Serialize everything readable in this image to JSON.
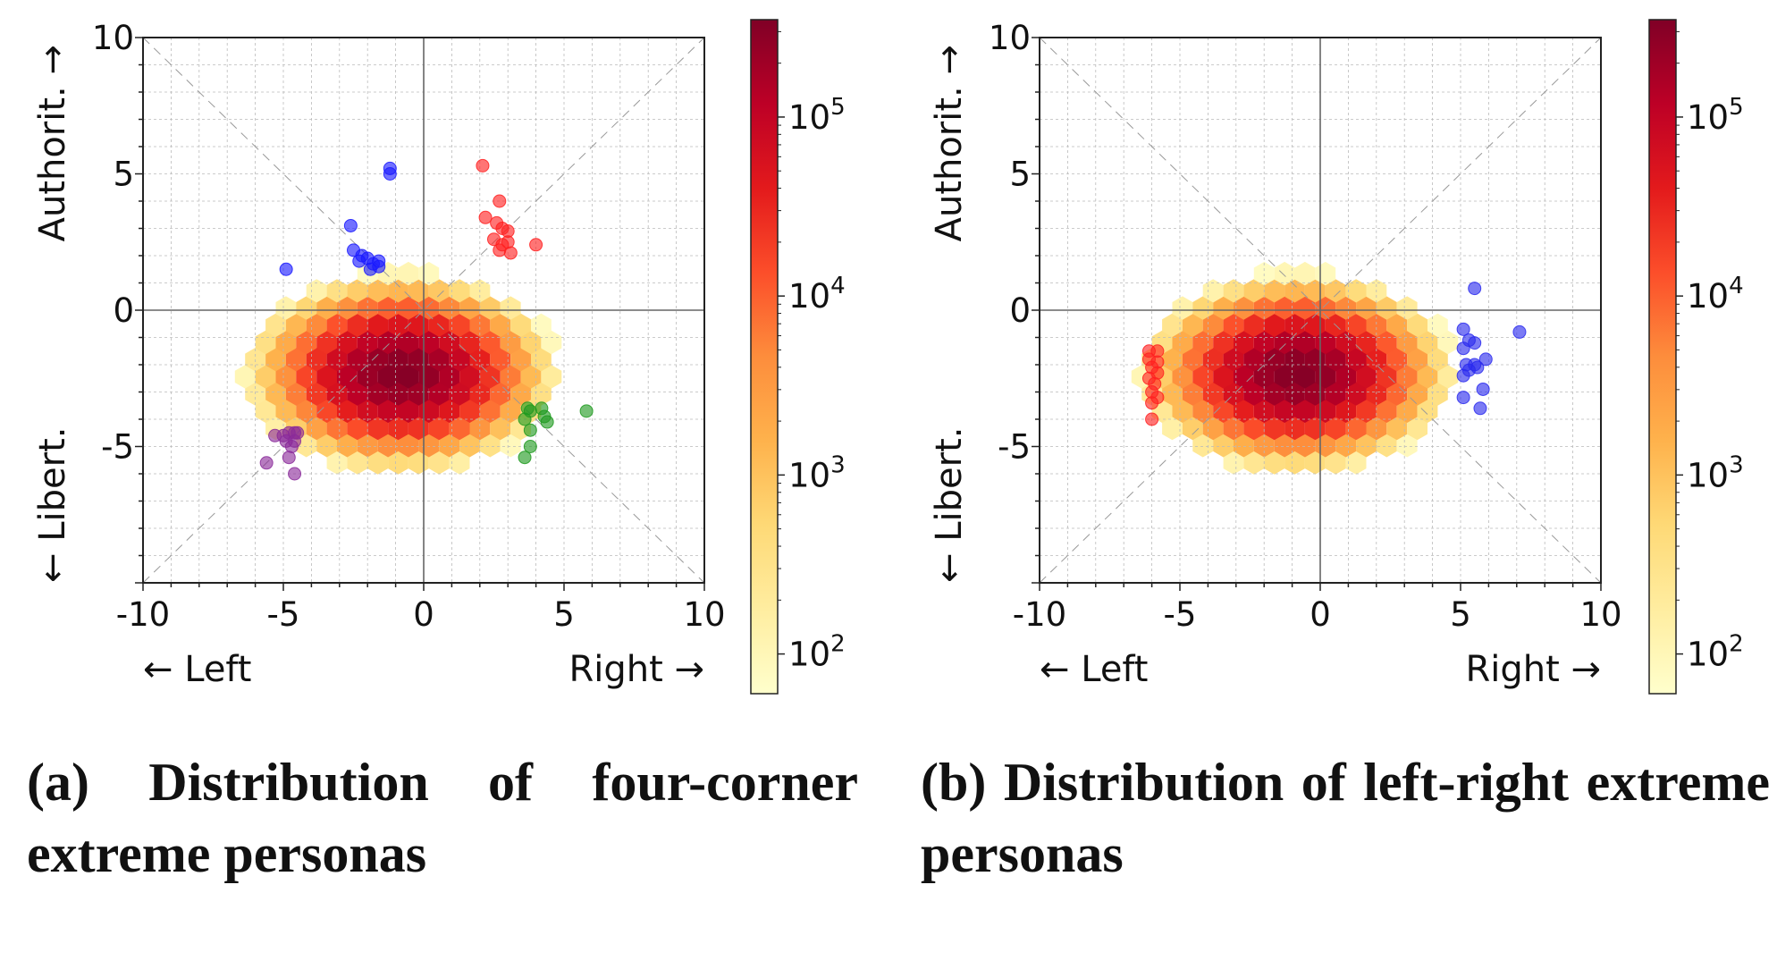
{
  "chart_data": [
    {
      "type": "hexbin-scatter",
      "caption": "(a) Distribution of four-corner extreme personas",
      "xlim": [
        -10,
        10
      ],
      "ylim": [
        -10,
        10
      ],
      "x_ticks": [
        "-10",
        "-5",
        "0",
        "5",
        "10"
      ],
      "y_ticks": [
        "10",
        "5",
        "0",
        "-5"
      ],
      "x_left_label": "← Left",
      "x_right_label": "Right →",
      "y_top_label": "Authorit. →",
      "y_bottom_label": "← Libert.",
      "grid": true,
      "density": {
        "center": [
          -0.8,
          -2.3
        ],
        "spread_x": 3.2,
        "spread_y": 2.1,
        "log_peak": 5.5
      },
      "colorbar": {
        "scale": "log",
        "range": [
          60,
          350000
        ],
        "ticks": [
          {
            "base": "10",
            "exp": "5",
            "value": 100000
          },
          {
            "base": "10",
            "exp": "4",
            "value": 10000
          },
          {
            "base": "10",
            "exp": "3",
            "value": 1000
          },
          {
            "base": "10",
            "exp": "2",
            "value": 100
          }
        ],
        "colormap": [
          "#ffffcc",
          "#ffeda0",
          "#fed976",
          "#feb24c",
          "#fd8d3c",
          "#fc4e2a",
          "#e31a1c",
          "#bd0026",
          "#800026"
        ]
      },
      "series": [
        {
          "color": "#1a1aff",
          "points": [
            [
              -1.2,
              5.2
            ],
            [
              -1.2,
              5.0
            ],
            [
              -2.6,
              3.1
            ],
            [
              -2.5,
              2.2
            ],
            [
              -2.2,
              2.0
            ],
            [
              -2.0,
              1.9
            ],
            [
              -1.8,
              1.7
            ],
            [
              -1.6,
              1.6
            ],
            [
              -2.3,
              1.8
            ],
            [
              -1.9,
              1.5
            ],
            [
              -1.6,
              1.8
            ],
            [
              -4.9,
              1.5
            ]
          ]
        },
        {
          "color": "#ff2020",
          "points": [
            [
              2.1,
              5.3
            ],
            [
              2.7,
              4.0
            ],
            [
              2.2,
              3.4
            ],
            [
              2.6,
              3.2
            ],
            [
              2.8,
              3.0
            ],
            [
              3.0,
              2.9
            ],
            [
              2.5,
              2.6
            ],
            [
              2.8,
              2.4
            ],
            [
              3.0,
              2.5
            ],
            [
              2.7,
              2.2
            ],
            [
              3.1,
              2.1
            ],
            [
              4.0,
              2.4
            ]
          ]
        },
        {
          "color": "#1e9a1e",
          "points": [
            [
              3.7,
              -3.6
            ],
            [
              3.8,
              -3.7
            ],
            [
              4.2,
              -3.6
            ],
            [
              4.3,
              -3.9
            ],
            [
              3.6,
              -4.0
            ],
            [
              4.4,
              -4.1
            ],
            [
              3.8,
              -4.4
            ],
            [
              5.8,
              -3.7
            ],
            [
              3.8,
              -5.0
            ],
            [
              3.6,
              -5.4
            ]
          ]
        },
        {
          "color": "#8a2a9a",
          "points": [
            [
              -5.3,
              -4.6
            ],
            [
              -5.0,
              -4.6
            ],
            [
              -4.8,
              -4.5
            ],
            [
              -4.6,
              -4.5
            ],
            [
              -4.5,
              -4.5
            ],
            [
              -4.9,
              -4.8
            ],
            [
              -4.7,
              -5.0
            ],
            [
              -4.6,
              -4.8
            ],
            [
              -4.8,
              -5.4
            ],
            [
              -5.6,
              -5.6
            ],
            [
              -4.6,
              -6.0
            ]
          ]
        }
      ]
    },
    {
      "type": "hexbin-scatter",
      "caption": "(b) Distribution of left-right extreme personas",
      "xlim": [
        -10,
        10
      ],
      "ylim": [
        -10,
        10
      ],
      "x_ticks": [
        "-10",
        "-5",
        "0",
        "5",
        "10"
      ],
      "y_ticks": [
        "10",
        "5",
        "0",
        "-5"
      ],
      "x_left_label": "← Left",
      "x_right_label": "Right →",
      "y_top_label": "Authorit. →",
      "y_bottom_label": "← Libert.",
      "grid": true,
      "density": {
        "center": [
          -0.8,
          -2.3
        ],
        "spread_x": 3.2,
        "spread_y": 2.1,
        "log_peak": 5.5
      },
      "colorbar": {
        "scale": "log",
        "range": [
          60,
          350000
        ],
        "ticks": [
          {
            "base": "10",
            "exp": "5",
            "value": 100000
          },
          {
            "base": "10",
            "exp": "4",
            "value": 10000
          },
          {
            "base": "10",
            "exp": "3",
            "value": 1000
          },
          {
            "base": "10",
            "exp": "2",
            "value": 100
          }
        ],
        "colormap": [
          "#ffffcc",
          "#ffeda0",
          "#fed976",
          "#feb24c",
          "#fd8d3c",
          "#fc4e2a",
          "#e31a1c",
          "#bd0026",
          "#800026"
        ]
      },
      "series": [
        {
          "color": "#ff2020",
          "points": [
            [
              -6.1,
              -1.5
            ],
            [
              -5.8,
              -1.5
            ],
            [
              -6.1,
              -1.8
            ],
            [
              -5.8,
              -1.9
            ],
            [
              -6.0,
              -2.1
            ],
            [
              -5.8,
              -2.3
            ],
            [
              -6.1,
              -2.5
            ],
            [
              -5.9,
              -2.7
            ],
            [
              -6.0,
              -3.0
            ],
            [
              -5.8,
              -3.2
            ],
            [
              -6.0,
              -3.4
            ],
            [
              -6.0,
              -4.0
            ]
          ]
        },
        {
          "color": "#2a2aee",
          "points": [
            [
              5.5,
              0.8
            ],
            [
              7.1,
              -0.8
            ],
            [
              5.1,
              -0.7
            ],
            [
              5.3,
              -1.1
            ],
            [
              5.5,
              -1.2
            ],
            [
              5.1,
              -1.4
            ],
            [
              5.9,
              -1.8
            ],
            [
              5.2,
              -2.0
            ],
            [
              5.5,
              -2.0
            ],
            [
              5.6,
              -2.1
            ],
            [
              5.3,
              -2.2
            ],
            [
              5.1,
              -2.4
            ],
            [
              5.8,
              -2.9
            ],
            [
              5.1,
              -3.2
            ],
            [
              5.7,
              -3.6
            ]
          ]
        }
      ]
    }
  ]
}
